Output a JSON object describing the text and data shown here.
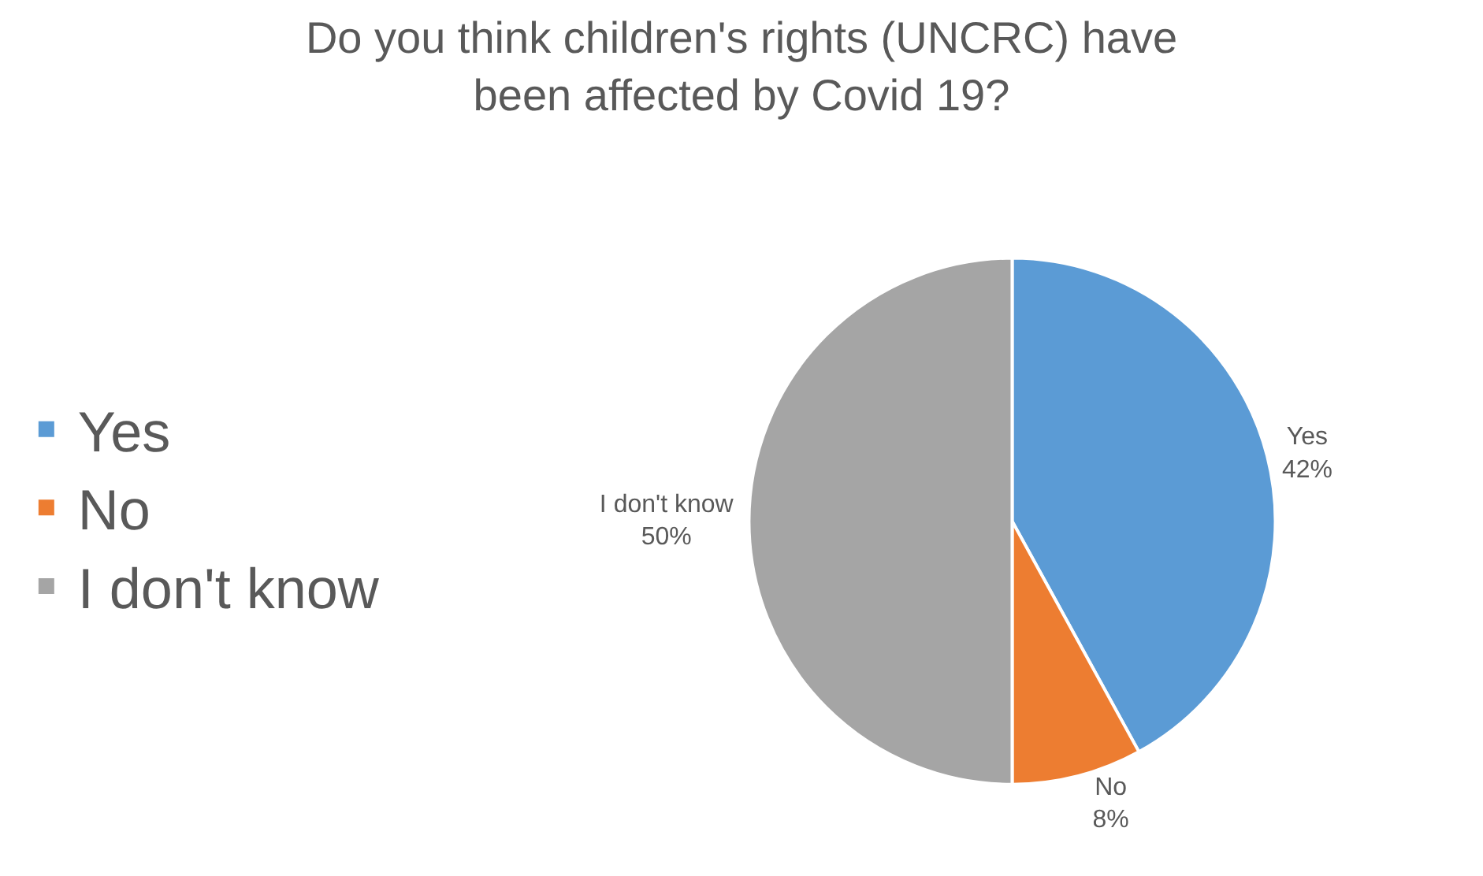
{
  "chart_data": {
    "type": "pie",
    "title": "Do you think children's rights (UNCRC) have been affected by Covid 19?",
    "categories": [
      "Yes",
      "No",
      "I don't know"
    ],
    "values": [
      42,
      8,
      50
    ],
    "colors": [
      "#5b9bd5",
      "#ed7d31",
      "#a5a5a5"
    ],
    "value_labels": [
      "42%",
      "8%",
      "50%"
    ],
    "legend": "left"
  }
}
